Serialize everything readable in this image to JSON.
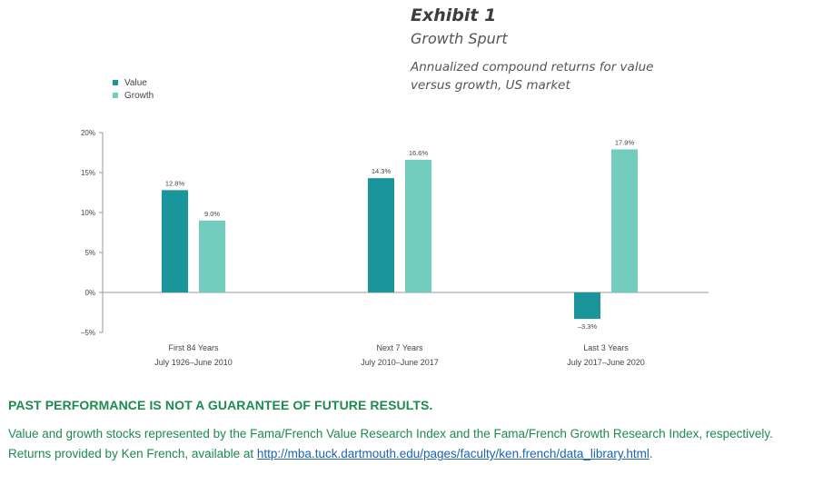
{
  "header": {
    "exhibit": "Exhibit 1",
    "subtitle": "Growth Spurt",
    "description": "Annualized compound returns for value versus growth, US market"
  },
  "chart_data": {
    "type": "bar",
    "categories": [
      {
        "line1": "First 84 Years",
        "line2": "July 1926–June 2010"
      },
      {
        "line1": "Next 7 Years",
        "line2": "July 2010–June 2017"
      },
      {
        "line1": "Last 3 Years",
        "line2": "July 2017–June 2020"
      }
    ],
    "series": [
      {
        "name": "Value",
        "color": "#1a959b",
        "values": [
          12.8,
          14.3,
          -3.3
        ],
        "labels": [
          "12.8%",
          "14.3%",
          "–3.3%"
        ]
      },
      {
        "name": "Growth",
        "color": "#72cdbe",
        "values": [
          9.0,
          16.6,
          17.9
        ],
        "labels": [
          "9.0%",
          "16.6%",
          "17.9%"
        ]
      }
    ],
    "ylim": [
      -5,
      20
    ],
    "yticks": [
      {
        "value": 20,
        "label": "20%"
      },
      {
        "value": 15,
        "label": "15%"
      },
      {
        "value": 10,
        "label": "10%"
      },
      {
        "value": 5,
        "label": "5%"
      },
      {
        "value": 0,
        "label": "0%"
      },
      {
        "value": -5,
        "label": "–5%"
      }
    ],
    "grid": false,
    "legend": "top-left"
  },
  "footer": {
    "warning": "PAST PERFORMANCE IS NOT A GUARANTEE OF FUTURE RESULTS.",
    "note": "Value and growth stocks represented by the Fama/French Value Research Index and the Fama/French Growth Research Index, respectively. Returns provided by Ken French, available at ",
    "link": "http://mba.tuck.dartmouth.edu/pages/faculty/ken.french/data_library.html",
    "note_end": "."
  }
}
